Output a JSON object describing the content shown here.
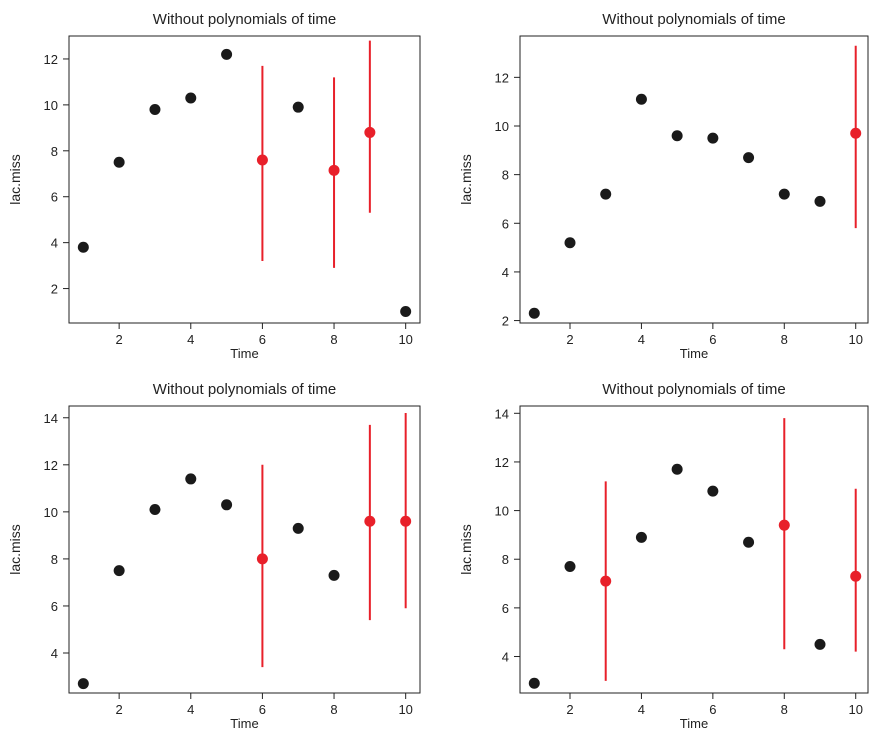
{
  "chart_data": [
    {
      "type": "scatter",
      "title": "Without polynomials of time",
      "xlabel": "Time",
      "ylabel": "lac.miss",
      "xlim": [
        0.6,
        10.4
      ],
      "ylim": [
        0.5,
        13.0
      ],
      "xticks": [
        2,
        4,
        6,
        8,
        10
      ],
      "yticks": [
        2,
        4,
        6,
        8,
        10,
        12
      ],
      "grid": false,
      "observed": [
        {
          "x": 1,
          "y": 3.8
        },
        {
          "x": 2,
          "y": 7.5
        },
        {
          "x": 3,
          "y": 9.8
        },
        {
          "x": 4,
          "y": 10.3
        },
        {
          "x": 5,
          "y": 12.2
        },
        {
          "x": 7,
          "y": 9.9
        },
        {
          "x": 10,
          "y": 1.0
        }
      ],
      "imputed": [
        {
          "x": 6,
          "y": 7.6,
          "low": 3.2,
          "high": 11.7
        },
        {
          "x": 8,
          "y": 7.15,
          "low": 2.9,
          "high": 11.2
        },
        {
          "x": 9,
          "y": 8.8,
          "low": 5.3,
          "high": 12.8
        }
      ]
    },
    {
      "type": "scatter",
      "title": "Without polynomials of time",
      "xlabel": "Time",
      "ylabel": "lac.miss",
      "xlim": [
        0.6,
        10.4
      ],
      "ylim": [
        1.9,
        13.7
      ],
      "xticks": [
        2,
        4,
        6,
        8,
        10
      ],
      "yticks": [
        2,
        4,
        6,
        8,
        10,
        12
      ],
      "grid": false,
      "observed": [
        {
          "x": 1,
          "y": 2.3
        },
        {
          "x": 2,
          "y": 5.2
        },
        {
          "x": 3,
          "y": 7.2
        },
        {
          "x": 4,
          "y": 11.1
        },
        {
          "x": 5,
          "y": 9.6
        },
        {
          "x": 6,
          "y": 9.5
        },
        {
          "x": 7,
          "y": 8.7
        },
        {
          "x": 8,
          "y": 7.2
        },
        {
          "x": 9,
          "y": 6.9
        }
      ],
      "imputed": [
        {
          "x": 10,
          "y": 9.7,
          "low": 5.8,
          "high": 13.3
        }
      ]
    },
    {
      "type": "scatter",
      "title": "Without polynomials of time",
      "xlabel": "Time",
      "ylabel": "lac.miss",
      "xlim": [
        0.6,
        10.4
      ],
      "ylim": [
        2.3,
        14.5
      ],
      "xticks": [
        2,
        4,
        6,
        8,
        10
      ],
      "yticks": [
        4,
        6,
        8,
        10,
        12,
        14
      ],
      "grid": false,
      "observed": [
        {
          "x": 1,
          "y": 2.7
        },
        {
          "x": 2,
          "y": 7.5
        },
        {
          "x": 3,
          "y": 10.1
        },
        {
          "x": 4,
          "y": 11.4
        },
        {
          "x": 5,
          "y": 10.3
        },
        {
          "x": 7,
          "y": 9.3
        },
        {
          "x": 8,
          "y": 7.3
        }
      ],
      "imputed": [
        {
          "x": 6,
          "y": 8.0,
          "low": 3.4,
          "high": 12.0
        },
        {
          "x": 9,
          "y": 9.6,
          "low": 5.4,
          "high": 13.7
        },
        {
          "x": 10,
          "y": 9.6,
          "low": 5.9,
          "high": 14.2
        }
      ]
    },
    {
      "type": "scatter",
      "title": "Without polynomials of time",
      "xlabel": "Time",
      "ylabel": "lac.miss",
      "xlim": [
        0.6,
        10.4
      ],
      "ylim": [
        2.5,
        14.3
      ],
      "xticks": [
        2,
        4,
        6,
        8,
        10
      ],
      "yticks": [
        4,
        6,
        8,
        10,
        12,
        14
      ],
      "grid": false,
      "observed": [
        {
          "x": 1,
          "y": 2.9
        },
        {
          "x": 2,
          "y": 7.7
        },
        {
          "x": 4,
          "y": 8.9
        },
        {
          "x": 5,
          "y": 11.7
        },
        {
          "x": 6,
          "y": 10.8
        },
        {
          "x": 7,
          "y": 8.7
        },
        {
          "x": 9,
          "y": 4.5
        }
      ],
      "imputed": [
        {
          "x": 3,
          "y": 7.1,
          "low": 3.0,
          "high": 11.2
        },
        {
          "x": 8,
          "y": 9.4,
          "low": 4.3,
          "high": 13.8
        },
        {
          "x": 10,
          "y": 7.3,
          "low": 4.2,
          "high": 10.9
        }
      ]
    }
  ],
  "colors": {
    "observed": "#1a1a1a",
    "imputed": "#e8202a",
    "axis": "#222222"
  }
}
